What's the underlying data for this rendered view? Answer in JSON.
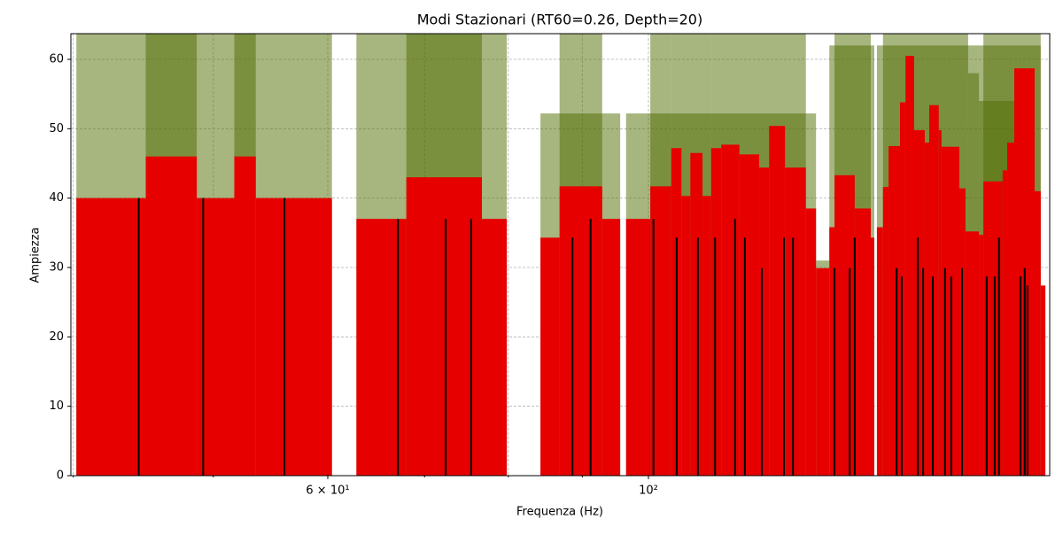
{
  "chart_data": {
    "type": "bar",
    "title": "Modi Stazionari (RT60=0.26, Depth=20)",
    "x_label": "Frequenza (Hz)",
    "y_label": "Ampiezza",
    "xscale": "log",
    "xlim": [
      39.85,
      189.5
    ],
    "ylim": [
      0,
      63.7
    ],
    "xticks": [
      {
        "value": 60,
        "label": "6 × 10¹"
      },
      {
        "value": 100,
        "label": "10²"
      }
    ],
    "xminorticks": [
      40,
      50,
      70,
      80,
      90
    ],
    "yticks": [
      0,
      10,
      20,
      30,
      40,
      50,
      60
    ],
    "grid": true,
    "bars": [
      {
        "color": "#4f6b00",
        "opacity": 0.5,
        "left": [
          40.2,
          44.9,
          51.7,
          62.8,
          68.0,
          84.2,
          86.8,
          96.5,
          100.3,
          103.7,
          110.5,
          130.6,
          133.4,
          134.5,
          143.9,
          145.3,
          166.4,
          169.3,
          170.5
        ],
        "right": [
          60.4,
          48.7,
          53.5,
          79.8,
          76.7,
          95.6,
          92.9,
          130.6,
          103.7,
          110.5,
          128.5,
          133.4,
          143.3,
          142.5,
          186.8,
          166.4,
          169.3,
          179.1,
          186.8
        ],
        "values": [
          70,
          70,
          70,
          70,
          70,
          52.2,
          70,
          52.2,
          70,
          70,
          70,
          31,
          62,
          70,
          62,
          70,
          58,
          54,
          70
        ]
      },
      {
        "color": "#e60000",
        "opacity": 1,
        "left": [
          40.2,
          44.9,
          48.7,
          51.7,
          53.5,
          62.8,
          68.0,
          76.7,
          84.2,
          86.8,
          92.9,
          96.5,
          100.3,
          103.7,
          105.4,
          106.9,
          109.0,
          110.5,
          112.3,
          115.6,
          119.3,
          121.2,
          124.3,
          128.5,
          130.6,
          133.4,
          134.5,
          138.9,
          142.5,
          143.9,
          145.3,
          146.6,
          149.3,
          150.6,
          152.7,
          155.3,
          156.4,
          158.8,
          159.5,
          164.1,
          165.7,
          166.9,
          169.3,
          170.5,
          175.8,
          177.1,
          179.1,
          185.0,
          186.8
        ],
        "right": [
          44.9,
          48.7,
          51.7,
          53.5,
          60.4,
          68.0,
          76.7,
          79.8,
          86.8,
          92.9,
          95.6,
          100.3,
          103.7,
          105.4,
          106.9,
          109.0,
          110.5,
          112.3,
          115.6,
          119.3,
          121.2,
          124.3,
          128.5,
          130.6,
          133.4,
          134.5,
          138.9,
          142.5,
          143.3,
          145.3,
          146.6,
          149.3,
          150.6,
          152.7,
          155.3,
          156.4,
          158.8,
          159.5,
          164.1,
          165.7,
          166.9,
          169.3,
          170.5,
          175.8,
          177.1,
          179.1,
          185.0,
          186.8,
          188.2
        ],
        "values": [
          40,
          46,
          40,
          46,
          40,
          37,
          43,
          37,
          34.3,
          41.7,
          37,
          37,
          41.7,
          47.2,
          40.3,
          46.5,
          40.3,
          47.2,
          47.7,
          46.3,
          44.4,
          50.4,
          44.4,
          38.5,
          29.9,
          35.8,
          43.3,
          38.5,
          34.3,
          35.8,
          41.6,
          47.5,
          53.8,
          60.5,
          49.8,
          48,
          53.4,
          49.8,
          47.4,
          41.4,
          35.2,
          35.2,
          34.7,
          42.4,
          44,
          48,
          58.7,
          41,
          27.4
        ]
      }
    ],
    "lines": {
      "color": "#000000",
      "x": [
        44.4,
        49.2,
        56.0,
        67.1,
        72.4,
        75.4,
        88.6,
        91.2,
        100.8,
        104.6,
        108.2,
        111.2,
        114.8,
        116.6,
        119.8,
        124.1,
        125.9,
        134.5,
        137.8,
        138.9,
        148.5,
        149.7,
        153.6,
        154.9,
        157.3,
        160.4,
        162.0,
        164.8,
        171.4,
        173.6,
        174.8,
        180.9,
        182.1,
        182.9
      ],
      "values": [
        40,
        40,
        40,
        37,
        37,
        37,
        34.3,
        37,
        37,
        34.3,
        34.3,
        34.3,
        37,
        34.3,
        29.9,
        34.3,
        34.3,
        29.9,
        29.9,
        34.3,
        29.9,
        28.7,
        34.3,
        29.9,
        28.7,
        29.9,
        28.7,
        29.9,
        28.7,
        28.7,
        34.3,
        28.7,
        29.9,
        27.4
      ]
    }
  }
}
